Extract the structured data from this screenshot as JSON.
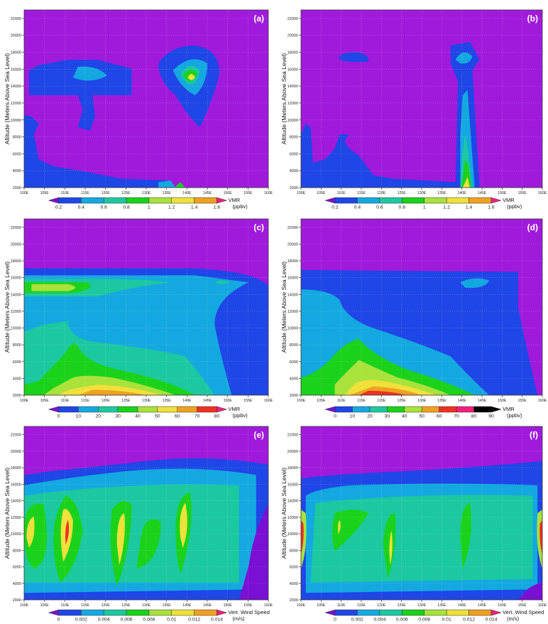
{
  "figure": {
    "ylabel": "Altitude (Meters Above Sea Level)",
    "yticks": [
      "2000",
      "4000",
      "6000",
      "8000",
      "10000",
      "12000",
      "14000",
      "16000",
      "18000",
      "20000",
      "22000"
    ],
    "xticks": [
      "100E",
      "105E",
      "110E",
      "115E",
      "120E",
      "125E",
      "130E",
      "135E",
      "140E",
      "145E",
      "150E",
      "155E",
      "160E"
    ]
  },
  "palette": [
    "#7a10d4",
    "#1f46e6",
    "#14a8e0",
    "#1cc8a0",
    "#1ad21a",
    "#a8e23a",
    "#f0e03a",
    "#f0a020",
    "#ee3020",
    "#f0207a"
  ],
  "background_color": "#a01adc",
  "chart_data": [
    {
      "type": "heatmap",
      "panel_label": "(a)",
      "x_range": [
        "100E",
        "160E"
      ],
      "ylim": [
        2000,
        23000
      ],
      "grid": true,
      "colorbar": {
        "ticks": [
          "0.2",
          "0.4",
          "0.6",
          "0.8",
          "1",
          "1.2",
          "1.4",
          "1.6"
        ],
        "label": [
          "VMR",
          "(ppbv)"
        ]
      }
    },
    {
      "type": "heatmap",
      "panel_label": "(b)",
      "x_range": [
        "100E",
        "160E"
      ],
      "ylim": [
        2000,
        23000
      ],
      "grid": true,
      "colorbar": {
        "ticks": [
          "0.2",
          "0.4",
          "0.6",
          "0.8",
          "1",
          "1.2",
          "1.4",
          "1.6"
        ],
        "label": [
          "VMR",
          "(ppbv)"
        ]
      }
    },
    {
      "type": "heatmap",
      "panel_label": "(c)",
      "x_range": [
        "100E",
        "160E"
      ],
      "ylim": [
        2000,
        23000
      ],
      "grid": true,
      "colorbar": {
        "ticks": [
          "0",
          "10",
          "20",
          "30",
          "40",
          "50",
          "60",
          "70",
          "80"
        ],
        "label": [
          "VMR",
          "(ppbv)"
        ]
      }
    },
    {
      "type": "heatmap",
      "panel_label": "(d)",
      "x_range": [
        "100E",
        "160E"
      ],
      "ylim": [
        2000,
        23000
      ],
      "grid": true,
      "colorbar": {
        "ticks": [
          "0",
          "10",
          "20",
          "30",
          "40",
          "50",
          "60",
          "70",
          "80",
          "90"
        ],
        "label": [
          "VMR",
          "(ppbv)"
        ]
      }
    },
    {
      "type": "heatmap",
      "panel_label": "(e)",
      "x_range": [
        "100E",
        "160E"
      ],
      "ylim": [
        2000,
        23000
      ],
      "grid": true,
      "colorbar": {
        "ticks": [
          "0",
          "0.002",
          "0.004",
          "0.006",
          "0.008",
          "0.01",
          "0.012",
          "0.014"
        ],
        "label": [
          "Vert. Wind Speed",
          "(m/s)"
        ]
      }
    },
    {
      "type": "heatmap",
      "panel_label": "(f)",
      "x_range": [
        "100E",
        "160E"
      ],
      "ylim": [
        2000,
        23000
      ],
      "grid": true,
      "colorbar": {
        "ticks": [
          "0",
          "0.002",
          "0.004",
          "0.006",
          "0.008",
          "0.01",
          "0.012",
          "0.014"
        ],
        "label": [
          "Vert. Wind Speed",
          "(m/s)"
        ]
      }
    }
  ]
}
